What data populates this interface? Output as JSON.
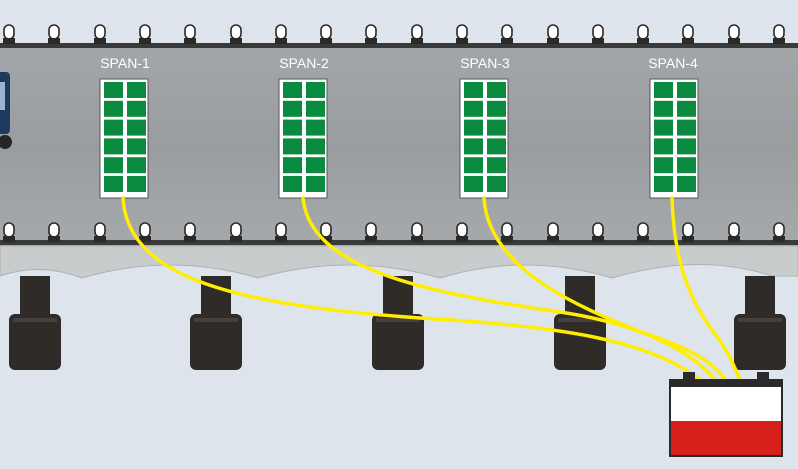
{
  "spans": [
    {
      "label": "SPAN-1"
    },
    {
      "label": "SPAN-2"
    },
    {
      "label": "SPAN-3"
    },
    {
      "label": "SPAN-4"
    }
  ],
  "panel": {
    "rows": 6,
    "cols": 2
  },
  "colors": {
    "background": "#dde4ec",
    "deck": "#9fa2a4",
    "cell": "#0a8a3e",
    "wire": "#ffee00",
    "pier": "#2f2b28",
    "battery_top": "#ffffff",
    "battery_bottom": "#d7201b"
  },
  "components": {
    "battery": "battery-icon",
    "lamp": "bridge-lamp-icon"
  }
}
